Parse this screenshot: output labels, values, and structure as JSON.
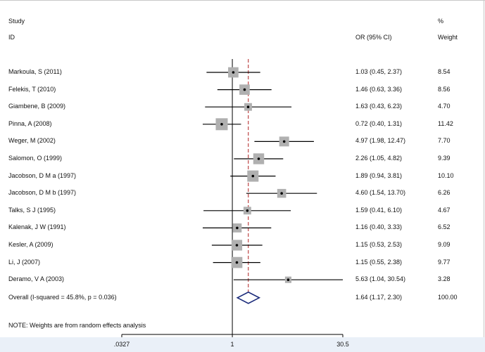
{
  "headers": {
    "study": "Study",
    "id": "ID",
    "or": "OR (95% CI)",
    "percent": "%",
    "weight": "Weight"
  },
  "note": "NOTE: Weights are from random effects analysis",
  "colors": {
    "line": "#000000",
    "box": "#b0b0b0",
    "dashed": "#b02020",
    "diamond": "#1a2a7a",
    "band": "#eaf0f8"
  },
  "chart_data": {
    "type": "forest",
    "scale": "log",
    "null_value": 1,
    "overall_dashed_value": 1.64,
    "x_ticks": [
      0.0327,
      1,
      30.5
    ],
    "x_tick_labels": [
      ".0327",
      "1",
      "30.5"
    ],
    "studies": [
      {
        "label": "Markoula, S (2011)",
        "or": 1.03,
        "lo": 0.45,
        "hi": 2.37,
        "or_text": "1.03 (0.45, 2.37)",
        "weight": 8.54,
        "weight_text": "8.54"
      },
      {
        "label": "Felekis, T (2010)",
        "or": 1.46,
        "lo": 0.63,
        "hi": 3.36,
        "or_text": "1.46 (0.63, 3.36)",
        "weight": 8.56,
        "weight_text": "8.56"
      },
      {
        "label": "Giambene, B (2009)",
        "or": 1.63,
        "lo": 0.43,
        "hi": 6.23,
        "or_text": "1.63 (0.43, 6.23)",
        "weight": 4.7,
        "weight_text": "4.70"
      },
      {
        "label": "Pinna, A (2008)",
        "or": 0.72,
        "lo": 0.4,
        "hi": 1.31,
        "or_text": "0.72 (0.40, 1.31)",
        "weight": 11.42,
        "weight_text": "11.42"
      },
      {
        "label": "Weger, M (2002)",
        "or": 4.97,
        "lo": 1.98,
        "hi": 12.47,
        "or_text": "4.97 (1.98, 12.47)",
        "weight": 7.7,
        "weight_text": "7.70"
      },
      {
        "label": "Salomon, O (1999)",
        "or": 2.26,
        "lo": 1.05,
        "hi": 4.82,
        "or_text": "2.26 (1.05, 4.82)",
        "weight": 9.39,
        "weight_text": "9.39"
      },
      {
        "label": "Jacobson, D M a (1997)",
        "or": 1.89,
        "lo": 0.94,
        "hi": 3.81,
        "or_text": "1.89 (0.94, 3.81)",
        "weight": 10.1,
        "weight_text": "10.10"
      },
      {
        "label": "Jacobson, D M b (1997)",
        "or": 4.6,
        "lo": 1.54,
        "hi": 13.7,
        "or_text": "4.60 (1.54, 13.70)",
        "weight": 6.26,
        "weight_text": "6.26"
      },
      {
        "label": "Talks, S J (1995)",
        "or": 1.59,
        "lo": 0.41,
        "hi": 6.1,
        "or_text": "1.59 (0.41, 6.10)",
        "weight": 4.67,
        "weight_text": "4.67"
      },
      {
        "label": "Kalenak, J W (1991)",
        "or": 1.16,
        "lo": 0.4,
        "hi": 3.33,
        "or_text": "1.16 (0.40, 3.33)",
        "weight": 6.52,
        "weight_text": "6.52"
      },
      {
        "label": "Kesler, A (2009)",
        "or": 1.15,
        "lo": 0.53,
        "hi": 2.53,
        "or_text": "1.15 (0.53, 2.53)",
        "weight": 9.09,
        "weight_text": "9.09"
      },
      {
        "label": "Li, J (2007)",
        "or": 1.15,
        "lo": 0.55,
        "hi": 2.38,
        "or_text": "1.15 (0.55, 2.38)",
        "weight": 9.77,
        "weight_text": "9.77"
      },
      {
        "label": "Deramo, V A (2003)",
        "or": 5.63,
        "lo": 1.04,
        "hi": 30.54,
        "or_text": "5.63 (1.04, 30.54)",
        "weight": 3.28,
        "weight_text": "3.28"
      }
    ],
    "overall": {
      "label": "Overall  (I-squared = 45.8%, p = 0.036)",
      "or": 1.64,
      "lo": 1.17,
      "hi": 2.3,
      "or_text": "1.64 (1.17, 2.30)",
      "weight_text": "100.00"
    }
  }
}
